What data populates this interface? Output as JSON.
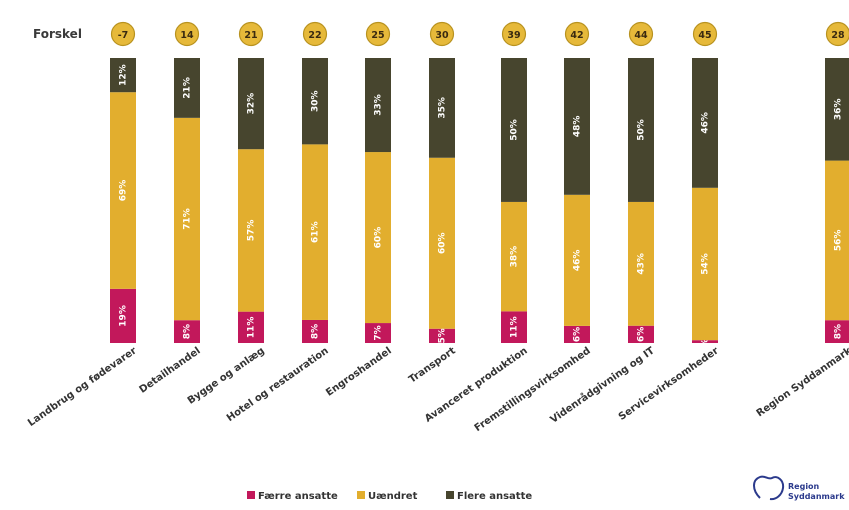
{
  "colors": {
    "faerre": "#c2185b",
    "uaendret": "#e2ae2e",
    "flere": "#47452e",
    "bubble": "#e6b93a",
    "bubble_stroke": "#b8921f",
    "logo": "#2b3a8c"
  },
  "logo": {
    "line1": "Region",
    "line2": "Syddanmark"
  },
  "chart_data": {
    "type": "bar",
    "stacked": true,
    "percent_stacked": true,
    "difference_label": "Forskel",
    "categories": [
      "Landbrug og fødevarer",
      "Detailhandel",
      "Bygge og anlæg",
      "Hotel og restauration",
      "Engroshandel",
      "Transport",
      "Avanceret produktion",
      "Fremstillingsvirksomhed",
      "Videnrådgivning og IT",
      "Servicevirksomheder",
      "Region Syddanmark"
    ],
    "differences": [
      "-7",
      "14",
      "21",
      "22",
      "25",
      "30",
      "39",
      "42",
      "44",
      "45",
      "28"
    ],
    "series": [
      {
        "name": "Færre ansatte",
        "values": [
          19,
          8,
          11,
          8,
          7,
          5,
          11,
          6,
          6,
          1,
          8
        ],
        "labels": [
          "19%",
          "8%",
          "11%",
          "8%",
          "7%",
          "5%",
          "11%",
          "6%",
          "6%",
          "1%",
          "8%"
        ]
      },
      {
        "name": "Uændret",
        "values": [
          69,
          71,
          57,
          61,
          60,
          60,
          38,
          46,
          43,
          54,
          56
        ],
        "labels": [
          "69%",
          "71%",
          "57%",
          "61%",
          "60%",
          "60%",
          "38%",
          "46%",
          "43%",
          "54%",
          "56%"
        ]
      },
      {
        "name": "Flere ansatte",
        "values": [
          12,
          21,
          32,
          30,
          33,
          35,
          50,
          48,
          50,
          46,
          36
        ],
        "labels": [
          "12%",
          "21%",
          "32%",
          "30%",
          "33%",
          "35%",
          "50%",
          "48%",
          "50%",
          "46%",
          "36%"
        ]
      }
    ],
    "legend_position": "bottom",
    "grid": false
  }
}
